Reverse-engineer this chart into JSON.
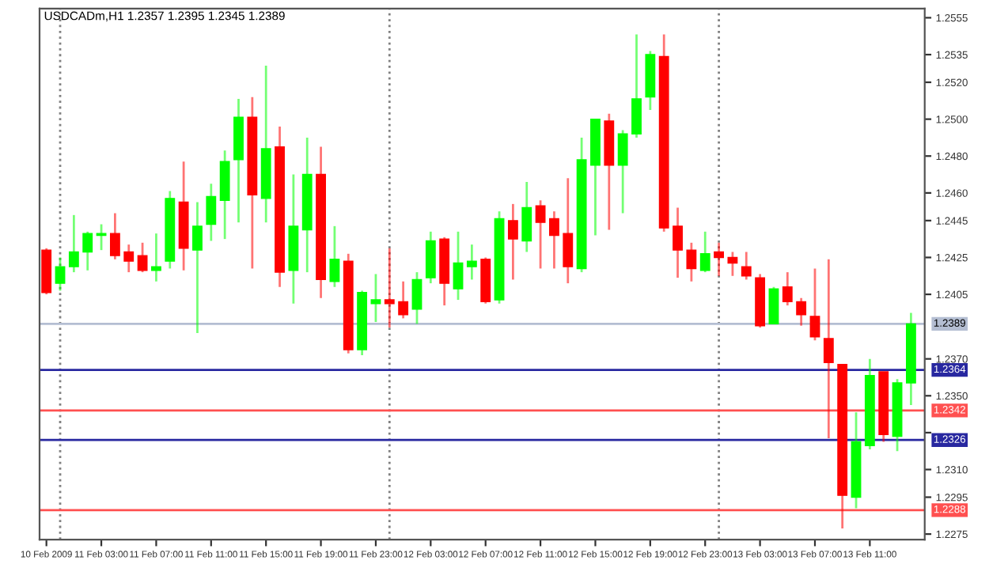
{
  "chart_data": {
    "type": "candlestick",
    "title": "USDCADm,H1 1.2357 1.2395 1.2345 1.2389",
    "x": [
      "2009-02-10T23:00",
      "2009-02-11T00:00",
      "2009-02-11T01:00",
      "2009-02-11T02:00",
      "2009-02-11T03:00",
      "2009-02-11T04:00",
      "2009-02-11T05:00",
      "2009-02-11T06:00",
      "2009-02-11T07:00",
      "2009-02-11T08:00",
      "2009-02-11T09:00",
      "2009-02-11T10:00",
      "2009-02-11T11:00",
      "2009-02-11T12:00",
      "2009-02-11T13:00",
      "2009-02-11T14:00",
      "2009-02-11T15:00",
      "2009-02-11T16:00",
      "2009-02-11T17:00",
      "2009-02-11T18:00",
      "2009-02-11T19:00",
      "2009-02-11T20:00",
      "2009-02-11T21:00",
      "2009-02-11T22:00",
      "2009-02-11T23:00",
      "2009-02-12T00:00",
      "2009-02-12T01:00",
      "2009-02-12T02:00",
      "2009-02-12T03:00",
      "2009-02-12T04:00",
      "2009-02-12T05:00",
      "2009-02-12T06:00",
      "2009-02-12T07:00",
      "2009-02-12T08:00",
      "2009-02-12T09:00",
      "2009-02-12T10:00",
      "2009-02-12T11:00",
      "2009-02-12T12:00",
      "2009-02-12T13:00",
      "2009-02-12T14:00",
      "2009-02-12T15:00",
      "2009-02-12T16:00",
      "2009-02-12T17:00",
      "2009-02-12T18:00",
      "2009-02-12T19:00",
      "2009-02-12T20:00",
      "2009-02-12T21:00",
      "2009-02-12T22:00",
      "2009-02-12T23:00",
      "2009-02-13T00:00",
      "2009-02-13T01:00",
      "2009-02-13T02:00",
      "2009-02-13T03:00",
      "2009-02-13T04:00",
      "2009-02-13T05:00",
      "2009-02-13T06:00",
      "2009-02-13T07:00",
      "2009-02-13T08:00",
      "2009-02-13T09:00",
      "2009-02-13T10:00",
      "2009-02-13T11:00",
      "2009-02-13T12:00",
      "2009-02-13T13:00",
      "2009-02-13T14:00"
    ],
    "ohlc": [
      [
        1.2429,
        1.243,
        1.2405,
        1.2406
      ],
      [
        1.2411,
        1.2425,
        1.2407,
        1.242
      ],
      [
        1.242,
        1.2448,
        1.2417,
        1.2428
      ],
      [
        1.2428,
        1.2439,
        1.2418,
        1.2438
      ],
      [
        1.2437,
        1.2443,
        1.2429,
        1.2438
      ],
      [
        1.2438,
        1.2449,
        1.2424,
        1.2426
      ],
      [
        1.2428,
        1.2432,
        1.2417,
        1.2423
      ],
      [
        1.2426,
        1.2433,
        1.2417,
        1.2418
      ],
      [
        1.2418,
        1.2438,
        1.2412,
        1.242
      ],
      [
        1.2423,
        1.2461,
        1.2419,
        1.2457
      ],
      [
        1.2455,
        1.2477,
        1.2418,
        1.243
      ],
      [
        1.2429,
        1.2455,
        1.2384,
        1.2442
      ],
      [
        1.2443,
        1.2465,
        1.2434,
        1.2458
      ],
      [
        1.2456,
        1.2483,
        1.2435,
        1.2477
      ],
      [
        1.2478,
        1.2511,
        1.2444,
        1.2501
      ],
      [
        1.2501,
        1.2512,
        1.2419,
        1.2459
      ],
      [
        1.2457,
        1.2529,
        1.2444,
        1.2484
      ],
      [
        1.2485,
        1.2496,
        1.2409,
        1.2417
      ],
      [
        1.2418,
        1.247,
        1.24,
        1.2442
      ],
      [
        1.244,
        1.249,
        1.2417,
        1.247
      ],
      [
        1.247,
        1.2485,
        1.2403,
        1.2413
      ],
      [
        1.2412,
        1.2442,
        1.2409,
        1.2424
      ],
      [
        1.2423,
        1.2427,
        1.2373,
        1.2375
      ],
      [
        1.2375,
        1.2407,
        1.2372,
        1.2406
      ],
      [
        1.24,
        1.2416,
        1.239,
        1.2402
      ],
      [
        1.2402,
        1.243,
        1.2387,
        1.24
      ],
      [
        1.2401,
        1.2412,
        1.2392,
        1.2394
      ],
      [
        1.2397,
        1.2417,
        1.2389,
        1.2413
      ],
      [
        1.2414,
        1.2439,
        1.2411,
        1.2434
      ],
      [
        1.2435,
        1.2436,
        1.2399,
        1.2411
      ],
      [
        1.2408,
        1.2439,
        1.2402,
        1.2422
      ],
      [
        1.242,
        1.2432,
        1.2413,
        1.2423
      ],
      [
        1.2424,
        1.2425,
        1.24,
        1.2401
      ],
      [
        1.2402,
        1.245,
        1.24,
        1.2446
      ],
      [
        1.2445,
        1.2454,
        1.2413,
        1.2435
      ],
      [
        1.2434,
        1.2466,
        1.2428,
        1.2452
      ],
      [
        1.2453,
        1.2456,
        1.2419,
        1.2444
      ],
      [
        1.2446,
        1.245,
        1.2419,
        1.2437
      ],
      [
        1.2438,
        1.2468,
        1.2411,
        1.242
      ],
      [
        1.2419,
        1.249,
        1.2417,
        1.2478
      ],
      [
        1.2475,
        1.25,
        1.2437,
        1.25
      ],
      [
        1.2499,
        1.2503,
        1.244,
        1.2475
      ],
      [
        1.2475,
        1.2494,
        1.2449,
        1.2492
      ],
      [
        1.2492,
        1.2546,
        1.249,
        1.2511
      ],
      [
        1.2512,
        1.2537,
        1.2505,
        1.2535
      ],
      [
        1.2534,
        1.2546,
        1.2439,
        1.2441
      ],
      [
        1.2442,
        1.2452,
        1.2414,
        1.2429
      ],
      [
        1.2429,
        1.2433,
        1.2412,
        1.2419
      ],
      [
        1.2418,
        1.2439,
        1.2417,
        1.2427
      ],
      [
        1.2428,
        1.2433,
        1.2415,
        1.2425
      ],
      [
        1.2425,
        1.2428,
        1.2415,
        1.2422
      ],
      [
        1.242,
        1.2428,
        1.2413,
        1.2415
      ],
      [
        1.2414,
        1.2416,
        1.2387,
        1.2388
      ],
      [
        1.2389,
        1.2409,
        1.2389,
        1.2408
      ],
      [
        1.2409,
        1.2417,
        1.2399,
        1.2401
      ],
      [
        1.2401,
        1.2403,
        1.2388,
        1.2394
      ],
      [
        1.2393,
        1.2419,
        1.238,
        1.2382
      ],
      [
        1.2381,
        1.2424,
        1.2327,
        1.2368
      ],
      [
        1.2367,
        1.2367,
        1.2278,
        1.2296
      ],
      [
        1.2295,
        1.2341,
        1.2289,
        1.2325
      ],
      [
        1.2323,
        1.237,
        1.2321,
        1.2361
      ],
      [
        1.2363,
        1.2363,
        1.2325,
        1.2329
      ],
      [
        1.2328,
        1.2359,
        1.232,
        1.2357
      ],
      [
        1.2357,
        1.2395,
        1.2345,
        1.2389
      ]
    ],
    "colors": [
      "#ff0000",
      "#00ff00",
      "#00ff00",
      "#00ff00",
      "#00ff00",
      "#ff0000",
      "#ff0000",
      "#ff0000",
      "#00ff00",
      "#00ff00",
      "#ff0000",
      "#00ff00",
      "#00ff00",
      "#00ff00",
      "#00ff00",
      "#ff0000",
      "#00ff00",
      "#ff0000",
      "#00ff00",
      "#00ff00",
      "#ff0000",
      "#00ff00",
      "#ff0000",
      "#00ff00",
      "#00ff00",
      "#ff0000",
      "#ff0000",
      "#00ff00",
      "#00ff00",
      "#ff0000",
      "#00ff00",
      "#00ff00",
      "#ff0000",
      "#00ff00",
      "#ff0000",
      "#00ff00",
      "#ff0000",
      "#ff0000",
      "#ff0000",
      "#00ff00",
      "#00ff00",
      "#ff0000",
      "#00ff00",
      "#00ff00",
      "#00ff00",
      "#ff0000",
      "#ff0000",
      "#ff0000",
      "#00ff00",
      "#ff0000",
      "#ff0000",
      "#ff0000",
      "#ff0000",
      "#00ff00",
      "#ff0000",
      "#ff0000",
      "#ff0000",
      "#ff0000",
      "#ff0000",
      "#00ff00",
      "#00ff00",
      "#ff0000",
      "#00ff00",
      "#00ff00"
    ],
    "xlim": [
      "2009-02-10T22:30",
      "2009-02-13T15:00"
    ],
    "xticks": [
      {
        "value": "2009-02-10T23:00",
        "label": "10 Feb 2009"
      },
      {
        "value": "2009-02-11T03:00",
        "label": "11 Feb 03:00"
      },
      {
        "value": "2009-02-11T07:00",
        "label": "11 Feb 07:00"
      },
      {
        "value": "2009-02-11T11:00",
        "label": "11 Feb 11:00"
      },
      {
        "value": "2009-02-11T15:00",
        "label": "11 Feb 15:00"
      },
      {
        "value": "2009-02-11T19:00",
        "label": "11 Feb 19:00"
      },
      {
        "value": "2009-02-11T23:00",
        "label": "11 Feb 23:00"
      },
      {
        "value": "2009-02-12T03:00",
        "label": "12 Feb 03:00"
      },
      {
        "value": "2009-02-12T07:00",
        "label": "12 Feb 07:00"
      },
      {
        "value": "2009-02-12T11:00",
        "label": "12 Feb 11:00"
      },
      {
        "value": "2009-02-12T15:00",
        "label": "12 Feb 15:00"
      },
      {
        "value": "2009-02-12T19:00",
        "label": "12 Feb 19:00"
      },
      {
        "value": "2009-02-12T23:00",
        "label": "12 Feb 23:00"
      },
      {
        "value": "2009-02-13T03:00",
        "label": "13 Feb 03:00"
      },
      {
        "value": "2009-02-13T07:00",
        "label": "13 Feb 07:00"
      },
      {
        "value": "2009-02-13T11:00",
        "label": "13 Feb 11:00"
      }
    ],
    "ylim": [
      1.2272,
      1.256
    ],
    "yticks": [
      1.2555,
      1.2535,
      {
        "value": 1.252,
        "label": "1.2520"
      },
      {
        "value": 1.25,
        "label": "1.2500"
      },
      {
        "value": 1.248,
        "label": "1.2480"
      },
      {
        "value": 1.246,
        "label": "1.2460"
      },
      1.2445,
      1.2425,
      1.2405,
      {
        "value": 1.237,
        "label": "1.2370"
      },
      {
        "value": 1.235,
        "label": "1.2350"
      },
      {
        "value": 1.233,
        "label": null
      },
      {
        "value": 1.231,
        "label": "1.2310"
      },
      1.2295,
      1.2275
    ],
    "ref_lines": [
      {
        "axis": "y",
        "value": 1.2389,
        "label": "1.2389",
        "color": "#b4bed2",
        "line_style": "solid"
      },
      {
        "axis": "y",
        "value": 1.2364,
        "label": "1.2364",
        "color": "#2828a0",
        "line_style": "solid"
      },
      {
        "axis": "y",
        "value": 1.2342,
        "label": "1.2342",
        "color": "#ff5050",
        "line_style": "solid"
      },
      {
        "axis": "y",
        "value": 1.2326,
        "label": "1.2326",
        "color": "#2828a0",
        "line_style": "solid"
      },
      {
        "axis": "y",
        "value": 1.2288,
        "label": "1.2288",
        "color": "#ff5050",
        "line_style": "solid"
      },
      {
        "axis": "x",
        "value": "2009-02-11T00:00",
        "color": "#808080",
        "line_style": "dotted"
      },
      {
        "axis": "x",
        "value": "2009-02-12T00:00",
        "color": "#808080",
        "line_style": "dotted"
      },
      {
        "axis": "x",
        "value": "2009-02-13T00:00",
        "color": "#808080",
        "line_style": "dotted"
      }
    ],
    "grid": false,
    "legend": false
  }
}
